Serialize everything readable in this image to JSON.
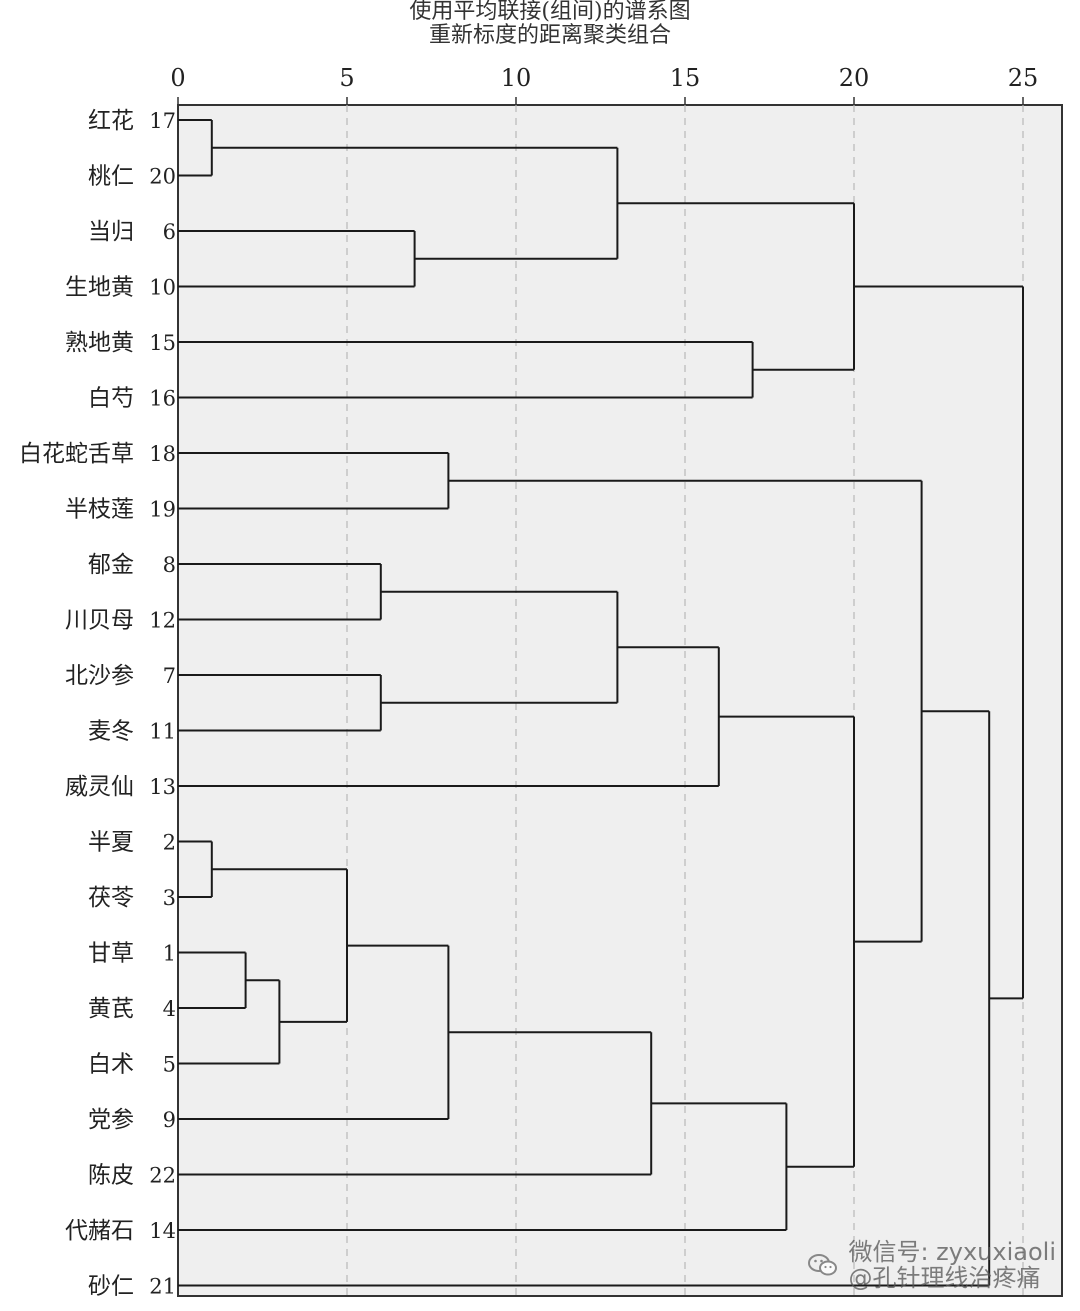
{
  "chart_data": {
    "type": "dendrogram",
    "title": "使用平均联接(组间)的谱系图",
    "subtitle": "重新标度的距离聚类组合",
    "xticks": [
      0,
      5,
      10,
      15,
      20,
      25
    ],
    "xlim": [
      0,
      26
    ],
    "grid": "dashed vertical",
    "leaves": [
      {
        "name": "红花",
        "id": "17"
      },
      {
        "name": "桃仁",
        "id": "20"
      },
      {
        "name": "当归",
        "id": "6"
      },
      {
        "name": "生地黄",
        "id": "10"
      },
      {
        "name": "熟地黄",
        "id": "15"
      },
      {
        "name": "白芍",
        "id": "16"
      },
      {
        "name": "白花蛇舌草",
        "id": "18"
      },
      {
        "name": "半枝莲",
        "id": "19"
      },
      {
        "name": "郁金",
        "id": "8"
      },
      {
        "name": "川贝母",
        "id": "12"
      },
      {
        "name": "北沙参",
        "id": "7"
      },
      {
        "name": "麦冬",
        "id": "11"
      },
      {
        "name": "威灵仙",
        "id": "13"
      },
      {
        "name": "半夏",
        "id": "2"
      },
      {
        "name": "茯苓",
        "id": "3"
      },
      {
        "name": "甘草",
        "id": "1"
      },
      {
        "name": "黄芪",
        "id": "4"
      },
      {
        "name": "白术",
        "id": "5"
      },
      {
        "name": "党参",
        "id": "9"
      },
      {
        "name": "陈皮",
        "id": "22"
      },
      {
        "name": "代赭石",
        "id": "14"
      },
      {
        "name": "砂仁",
        "id": "21"
      }
    ],
    "merges": [
      {
        "id": "c1",
        "a": 0,
        "b": 1,
        "height": 1
      },
      {
        "id": "c2",
        "a": 2,
        "b": 3,
        "height": 7
      },
      {
        "id": "c3",
        "a": "c1",
        "b": "c2",
        "height": 13
      },
      {
        "id": "c4",
        "a": 4,
        "b": 5,
        "height": 17
      },
      {
        "id": "c5",
        "a": "c3",
        "b": "c4",
        "height": 20
      },
      {
        "id": "c6",
        "a": 6,
        "b": 7,
        "height": 8
      },
      {
        "id": "c7",
        "a": 8,
        "b": 9,
        "height": 6
      },
      {
        "id": "c8",
        "a": 10,
        "b": 11,
        "height": 6
      },
      {
        "id": "c9",
        "a": "c7",
        "b": "c8",
        "height": 13
      },
      {
        "id": "c10",
        "a": "c9",
        "b": 12,
        "height": 16
      },
      {
        "id": "c11",
        "a": 13,
        "b": 14,
        "height": 1
      },
      {
        "id": "c12",
        "a": 15,
        "b": 16,
        "height": 2
      },
      {
        "id": "c13",
        "a": "c12",
        "b": 17,
        "height": 3
      },
      {
        "id": "c14",
        "a": "c11",
        "b": "c13",
        "height": 5
      },
      {
        "id": "c15",
        "a": "c14",
        "b": 18,
        "height": 8
      },
      {
        "id": "c16",
        "a": "c15",
        "b": 19,
        "height": 14
      },
      {
        "id": "c17",
        "a": "c16",
        "b": 20,
        "height": 18
      },
      {
        "id": "c18",
        "a": "c10",
        "b": "c17",
        "height": 20
      },
      {
        "id": "c19",
        "a": "c6",
        "b": "c18",
        "height": 22
      },
      {
        "id": "c20",
        "a": "c19",
        "b": 21,
        "height": 24
      },
      {
        "id": "c21",
        "a": "c5",
        "b": "c20",
        "height": 25
      }
    ]
  },
  "watermark": {
    "line1": "微信号: zyxuxiaoli",
    "line2": "@孔针理线治疼痛"
  }
}
